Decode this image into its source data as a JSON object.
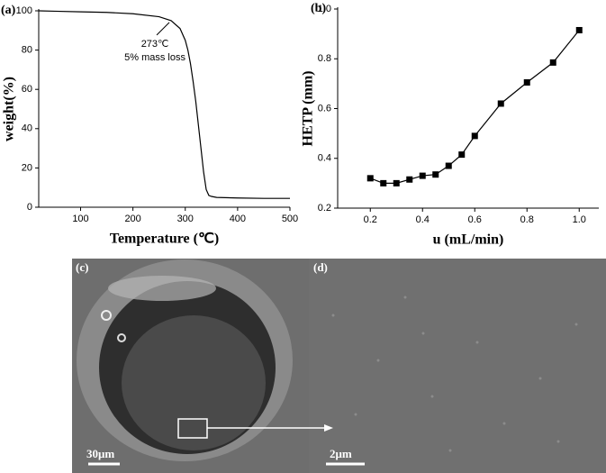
{
  "chart_data": [
    {
      "type": "line",
      "title": "(a)",
      "xlabel": "Temperature (℃)",
      "ylabel": "weight(%)",
      "x": [
        20,
        50,
        100,
        150,
        200,
        250,
        273,
        290,
        300,
        305,
        310,
        315,
        320,
        325,
        330,
        335,
        340,
        345,
        350,
        360,
        400,
        450,
        500
      ],
      "values": [
        100,
        99.8,
        99.5,
        99.2,
        98.5,
        97,
        95,
        91,
        85,
        80,
        73,
        64,
        54,
        42,
        30,
        18,
        9,
        6,
        5.5,
        5,
        4.7,
        4.5,
        4.5
      ],
      "color": "#000000",
      "xlim": [
        20,
        500
      ],
      "xticks": [
        100,
        200,
        300,
        400,
        500
      ],
      "ylim": [
        0,
        100
      ],
      "yticks": [
        0,
        20,
        40,
        60,
        80,
        100
      ],
      "annotations": [
        "273℃",
        "5% mass loss"
      ]
    },
    {
      "type": "line",
      "markers": "square",
      "title": "(b)",
      "xlabel": "u (mL/min)",
      "ylabel": "HETP (mm)",
      "x": [
        0.2,
        0.25,
        0.3,
        0.35,
        0.4,
        0.45,
        0.5,
        0.55,
        0.6,
        0.7,
        0.8,
        0.9,
        1.0
      ],
      "values": [
        0.32,
        0.3,
        0.3,
        0.315,
        0.33,
        0.335,
        0.37,
        0.415,
        0.49,
        0.62,
        0.705,
        0.785,
        0.915
      ],
      "color": "#000000",
      "xlim": [
        0.075,
        1.075
      ],
      "xticks": [
        0.2,
        0.4,
        0.6,
        0.8,
        {
          "value": 1.0,
          "label": "1.0"
        }
      ],
      "ylim": [
        0.2,
        1.0
      ],
      "yticks": [
        0.2,
        0.4,
        0.6,
        0.8,
        {
          "value": 1.0,
          "label": "1.0"
        }
      ]
    }
  ],
  "images": [
    {
      "label": "(c)",
      "scale": "30μm"
    },
    {
      "label": "(d)",
      "scale": "2μm"
    }
  ]
}
